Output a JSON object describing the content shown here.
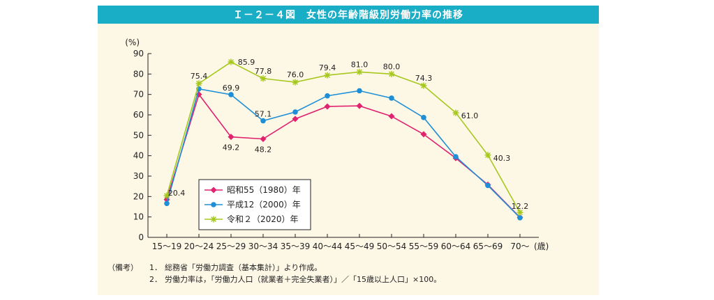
{
  "title": "Ｉ－２－４図　女性の年齢階級別労働力率の推移",
  "notes": {
    "head": "（備考）",
    "items": [
      {
        "num": "1．",
        "text": "総務省「労働力調査（基本集計）」より作成。"
      },
      {
        "num": "2．",
        "text": "労働力率は，「労働力人口（就業者＋完全失業者）」／「15歳以上人口」×100。"
      }
    ]
  },
  "chart_data": {
    "type": "line",
    "title": "女性の年齢階級別労働力率の推移",
    "ylabel": "(%)",
    "xlabel": "(歳)",
    "ylim": [
      0,
      90
    ],
    "yticks": [
      "0",
      "10",
      "20",
      "30",
      "40",
      "50",
      "60",
      "70",
      "80",
      "90"
    ],
    "categories": [
      "15～19",
      "20～24",
      "25～29",
      "30～34",
      "35～39",
      "40～44",
      "45～49",
      "50～54",
      "55～59",
      "60～64",
      "65～69",
      "70～"
    ],
    "series": [
      {
        "name": "昭和55（1980）年",
        "color": "#e0226f",
        "marker": "diamond",
        "values": [
          18.5,
          70.0,
          49.2,
          48.2,
          58.0,
          64.1,
          64.4,
          59.3,
          50.5,
          38.8,
          25.8,
          9.8
        ],
        "labels": [
          null,
          null,
          "49.2",
          "48.2",
          null,
          null,
          null,
          null,
          null,
          null,
          null,
          null
        ]
      },
      {
        "name": "平成12（2000）年",
        "color": "#1e8fd6",
        "marker": "circle",
        "values": [
          16.6,
          72.7,
          69.9,
          57.1,
          61.4,
          69.3,
          71.8,
          68.2,
          58.7,
          39.5,
          25.4,
          9.6
        ],
        "labels": [
          null,
          null,
          "69.9",
          "57.1",
          null,
          null,
          null,
          null,
          null,
          null,
          null,
          null
        ]
      },
      {
        "name": "令和２（2020）年",
        "color": "#a6c81e",
        "marker": "asterisk",
        "values": [
          20.4,
          75.4,
          85.9,
          77.8,
          76.0,
          79.4,
          81.0,
          80.0,
          74.3,
          61.0,
          40.3,
          12.2
        ],
        "labels": [
          "20.4",
          "75.4",
          "85.9",
          "77.8",
          "76.0",
          "79.4",
          "81.0",
          "80.0",
          "74.3",
          "61.0",
          "40.3",
          "12.2"
        ]
      }
    ]
  }
}
